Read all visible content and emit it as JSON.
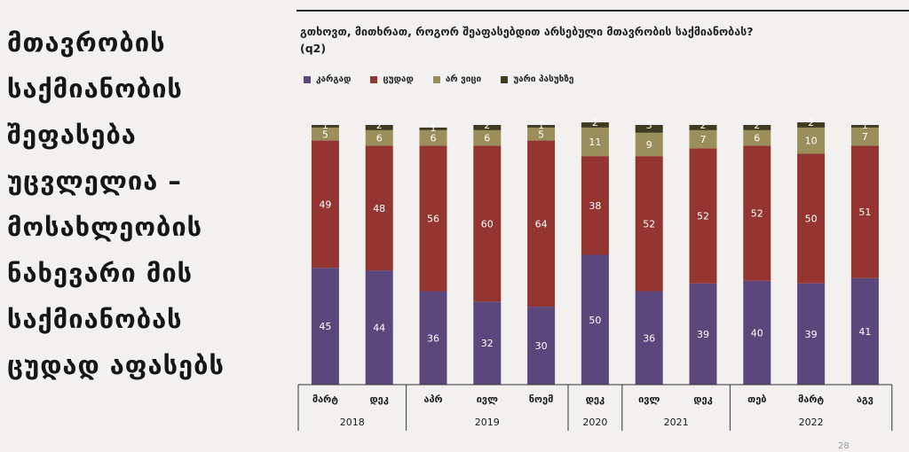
{
  "headline": "მთავრობის საქმიანობის შეფასება უცვლელია – მოსახლეობის ნახევარი მის საქმიანობას ცუდად აფასებს",
  "page_number": "28",
  "chart_data": {
    "type": "bar",
    "stacked": true,
    "title": "გთხოვთ, მითხრათ, როგორ შეაფასებდით არსებული მთავრობის საქმიანობას? (q2)",
    "legend_position": "top-left",
    "ylim": [
      0,
      100
    ],
    "grid": false,
    "categories": [
      "მარტ",
      "დეკ",
      "აპრ",
      "ივლ",
      "ნოემ",
      "დეკ",
      "ივლ",
      "დეკ",
      "თებ",
      "მარტ",
      "აგვ"
    ],
    "year_groups": [
      {
        "label": "2018",
        "count": 2
      },
      {
        "label": "2019",
        "count": 3
      },
      {
        "label": "2020",
        "count": 1
      },
      {
        "label": "2021",
        "count": 2
      },
      {
        "label": "2022",
        "count": 3
      }
    ],
    "series": [
      {
        "name": "კარგად",
        "color": "#5b477c",
        "values": [
          45,
          44,
          36,
          32,
          30,
          50,
          36,
          39,
          40,
          39,
          41
        ]
      },
      {
        "name": "ცუდად",
        "color": "#943532",
        "values": [
          49,
          48,
          56,
          60,
          64,
          38,
          52,
          52,
          52,
          50,
          51
        ]
      },
      {
        "name": "არ ვიცი",
        "color": "#9a8f5a",
        "values": [
          5,
          6,
          6,
          6,
          5,
          11,
          9,
          7,
          6,
          10,
          7
        ]
      },
      {
        "name": "უარი პასუხზე",
        "color": "#3f3a20",
        "values": [
          1,
          2,
          1,
          2,
          1,
          2,
          3,
          2,
          2,
          2,
          1
        ]
      }
    ]
  }
}
